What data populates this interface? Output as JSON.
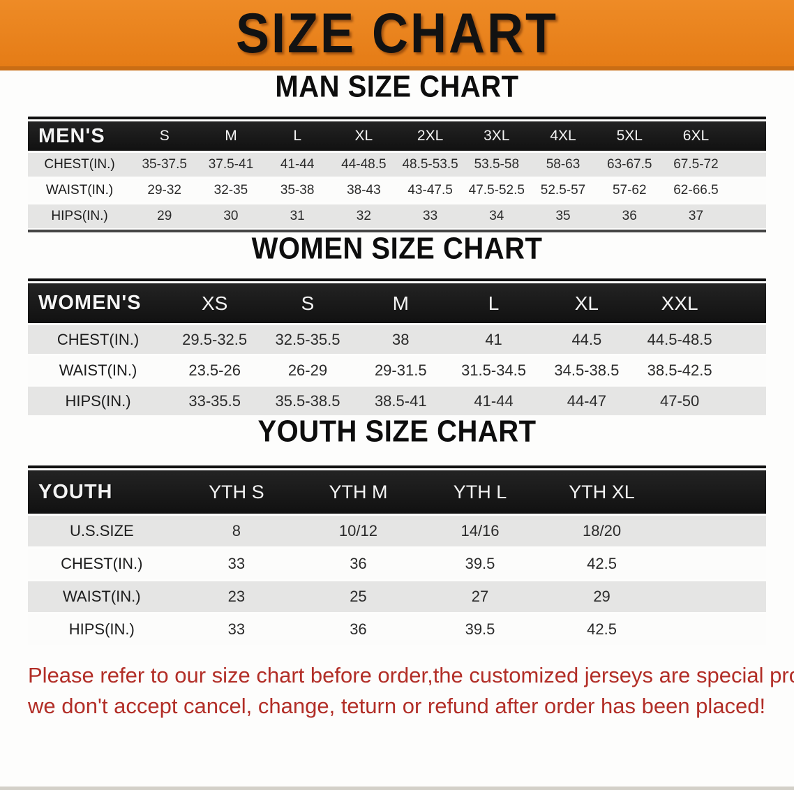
{
  "banner": {
    "title": "SIZE CHART",
    "bg_color": "#E8831E",
    "edge_color": "#C96D14"
  },
  "colors": {
    "table_header_bg": "#141414",
    "row_gray": "#E5E5E4",
    "row_white": "#FCFCFB",
    "disclaimer_red": "#B22E27"
  },
  "sections": [
    {
      "title": "MAN SIZE CHART",
      "header_label": "MEN'S",
      "columns": [
        "S",
        "M",
        "L",
        "XL",
        "2XL",
        "3XL",
        "4XL",
        "5XL",
        "6XL"
      ],
      "rows": [
        {
          "label": "CHEST(IN.)",
          "values": [
            "35-37.5",
            "37.5-41",
            "41-44",
            "44-48.5",
            "48.5-53.5",
            "53.5-58",
            "58-63",
            "63-67.5",
            "67.5-72"
          ]
        },
        {
          "label": "WAIST(IN.)",
          "values": [
            "29-32",
            "32-35",
            "35-38",
            "38-43",
            "43-47.5",
            "47.5-52.5",
            "52.5-57",
            "57-62",
            "62-66.5"
          ]
        },
        {
          "label": "HIPS(IN.)",
          "values": [
            "29",
            "30",
            "31",
            "32",
            "33",
            "34",
            "35",
            "36",
            "37"
          ]
        }
      ]
    },
    {
      "title": "WOMEN SIZE CHART",
      "header_label": "WOMEN'S",
      "columns": [
        "XS",
        "S",
        "M",
        "L",
        "XL",
        "XXL"
      ],
      "rows": [
        {
          "label": "CHEST(IN.)",
          "values": [
            "29.5-32.5",
            "32.5-35.5",
            "38",
            "41",
            "44.5",
            "44.5-48.5"
          ]
        },
        {
          "label": "WAIST(IN.)",
          "values": [
            "23.5-26",
            "26-29",
            "29-31.5",
            "31.5-34.5",
            "34.5-38.5",
            "38.5-42.5"
          ]
        },
        {
          "label": "HIPS(IN.)",
          "values": [
            "33-35.5",
            "35.5-38.5",
            "38.5-41",
            "41-44",
            "44-47",
            "47-50"
          ]
        }
      ]
    },
    {
      "title": "YOUTH SIZE CHART",
      "header_label": "YOUTH",
      "columns": [
        "YTH S",
        "YTH M",
        "YTH L",
        "YTH XL"
      ],
      "rows": [
        {
          "label": "U.S.SIZE",
          "values": [
            "8",
            "10/12",
            "14/16",
            "18/20"
          ]
        },
        {
          "label": "CHEST(IN.)",
          "values": [
            "33",
            "36",
            "39.5",
            "42.5"
          ]
        },
        {
          "label": "WAIST(IN.)",
          "values": [
            "23",
            "25",
            "27",
            "29"
          ]
        },
        {
          "label": "HIPS(IN.)",
          "values": [
            "33",
            "36",
            "39.5",
            "42.5"
          ]
        }
      ]
    }
  ],
  "disclaimer": {
    "line1": "Please refer to our size chart before order,the customized jerseys are special products,",
    "line2": "we don't accept cancel, change, teturn or refund after order has been placed!"
  }
}
